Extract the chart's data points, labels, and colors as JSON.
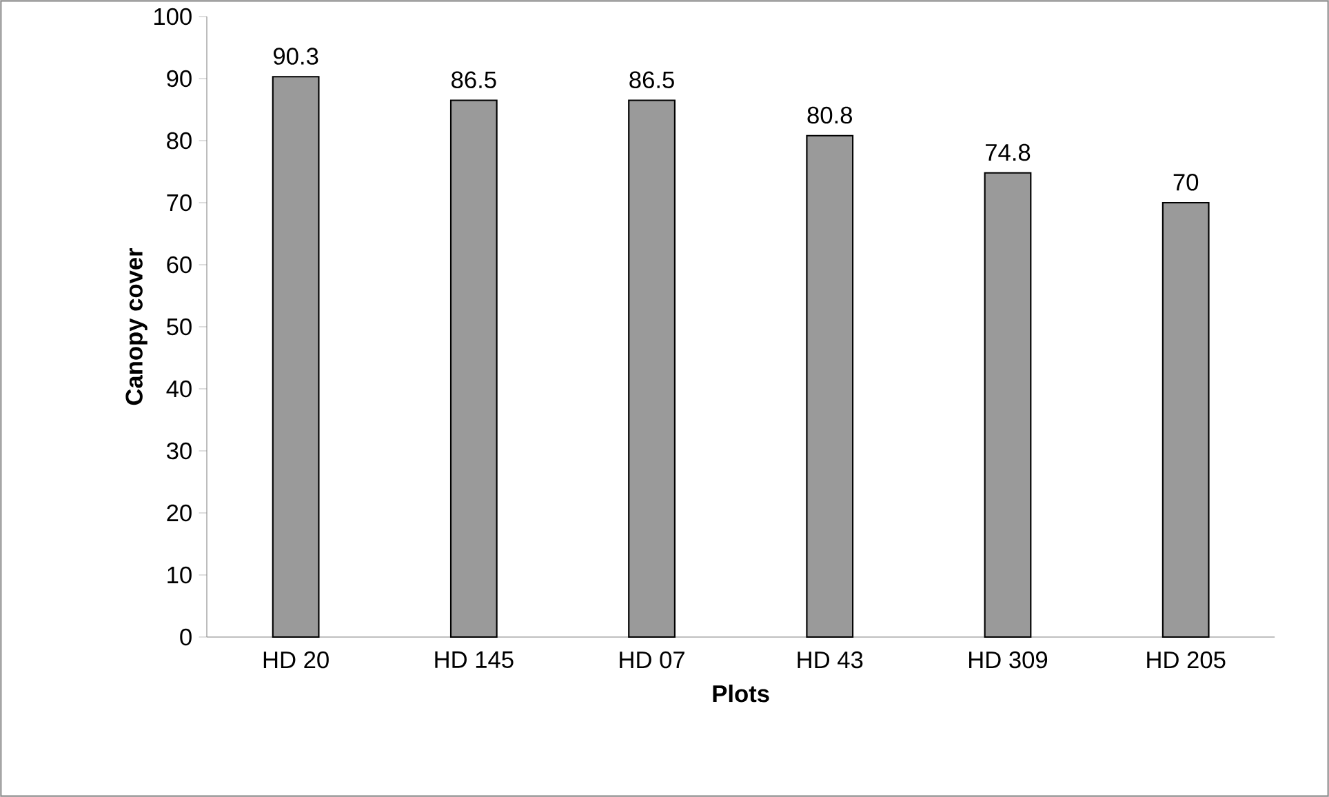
{
  "chart_data": {
    "type": "bar",
    "xlabel": "Plots",
    "ylabel": "Canopy cover",
    "categories": [
      "HD 20",
      "HD 145",
      "HD 07",
      "HD 43",
      "HD 309",
      "HD 205"
    ],
    "values": [
      90.3,
      86.5,
      86.5,
      80.8,
      74.8,
      70
    ],
    "color": "#9a9a9a",
    "ylim": [
      0,
      100
    ],
    "yticks": [
      0,
      10,
      20,
      30,
      40,
      50,
      60,
      70,
      80,
      90,
      100
    ],
    "data_labels": true
  }
}
